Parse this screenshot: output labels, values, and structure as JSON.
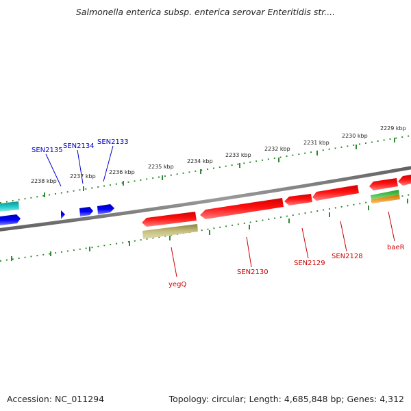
{
  "title": "Salmonella enterica subsp. enterica serovar Enteritidis str....",
  "accession": "Accession: NC_011294",
  "genome_info": "Topology: circular; Length: 4,685,848 bp; Genes: 4,312",
  "colors": {
    "backbone": "#808080",
    "tick": "#2e8b2e",
    "forward_gene_label": "#0000cc",
    "reverse_gene_label": "#cc0000",
    "cds_red": "#ff0000",
    "cds_blue": "#0000ff",
    "cds_cyan": "#20c0c0",
    "cds_olive": "#c8c080",
    "cds_green": "#30c030",
    "cds_orange": "#ff9900"
  },
  "tick_labels": [
    {
      "text": "2238 kbp"
    },
    {
      "text": "2237 kbp"
    },
    {
      "text": "2236 kbp"
    },
    {
      "text": "2235 kbp"
    },
    {
      "text": "2234 kbp"
    },
    {
      "text": "2233 kbp"
    },
    {
      "text": "2232 kbp"
    },
    {
      "text": "2231 kbp"
    },
    {
      "text": "2230 kbp"
    },
    {
      "text": "2229 kbp"
    }
  ],
  "forward_gene_labels": [
    {
      "text": "SEN2135"
    },
    {
      "text": "SEN2134"
    },
    {
      "text": "SEN2133"
    }
  ],
  "reverse_gene_labels": [
    {
      "text": "yegQ"
    },
    {
      "text": "SEN2130"
    },
    {
      "text": "SEN2129"
    },
    {
      "text": "SEN2128"
    },
    {
      "text": "baeR"
    }
  ]
}
